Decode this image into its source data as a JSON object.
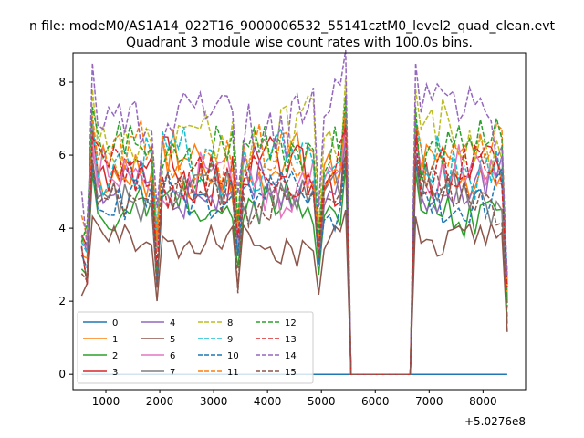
{
  "chart_data": {
    "type": "line",
    "suptitle": "n file: modeM0/AS1A14_022T16_9000006532_55141cztM0_level2_quad_clean.evt",
    "title": "Quadrant 3 module wise count rates with 100.0s bins.",
    "xlabel": "",
    "ylabel": "",
    "x_offset_label": "+5.0276e8",
    "xlim": [
      390,
      8790
    ],
    "ylim": [
      -0.42,
      8.8
    ],
    "xticks": [
      1000,
      2000,
      3000,
      4000,
      5000,
      6000,
      7000,
      8000
    ],
    "xtick_labels": [
      "1000",
      "2000",
      "3000",
      "4000",
      "5000",
      "6000",
      "7000",
      "8000"
    ],
    "yticks": [
      0,
      2,
      4,
      6,
      8
    ],
    "ytick_labels": [
      "0",
      "2",
      "4",
      "6",
      "8"
    ],
    "grid": false,
    "legend": {
      "placement": "lower-left",
      "columns": 4
    },
    "x_range": [
      550,
      8450
    ],
    "x_step": 100,
    "gap_from_x": 5550,
    "gap_to_x": 6650,
    "series": [
      {
        "name": "0",
        "color": "#1f77b4",
        "style": "solid",
        "base": 0.0,
        "flat": true
      },
      {
        "name": "1",
        "color": "#ff7f0e",
        "style": "solid",
        "base": 5.7
      },
      {
        "name": "2",
        "color": "#2ca02c",
        "style": "solid",
        "base": 4.6
      },
      {
        "name": "3",
        "color": "#d62728",
        "style": "solid",
        "base": 5.6
      },
      {
        "name": "4",
        "color": "#9467bd",
        "style": "solid",
        "base": 5.1
      },
      {
        "name": "5",
        "color": "#8c564b",
        "style": "solid",
        "base": 3.6
      },
      {
        "name": "6",
        "color": "#e377c2",
        "style": "solid",
        "base": 5.3
      },
      {
        "name": "7",
        "color": "#7f7f7f",
        "style": "solid",
        "base": 4.9
      },
      {
        "name": "8",
        "color": "#bcbd22",
        "style": "dashed",
        "base": 6.5
      },
      {
        "name": "9",
        "color": "#17becf",
        "style": "dashed",
        "base": 5.8
      },
      {
        "name": "10",
        "color": "#1f77b4",
        "style": "dashed",
        "base": 4.8
      },
      {
        "name": "11",
        "color": "#ff7f0e",
        "style": "dashed",
        "base": 5.9
      },
      {
        "name": "12",
        "color": "#2ca02c",
        "style": "dashed",
        "base": 6.1
      },
      {
        "name": "13",
        "color": "#d62728",
        "style": "dashed",
        "base": 5.4
      },
      {
        "name": "14",
        "color": "#9467bd",
        "style": "dashed",
        "base": 7.1
      },
      {
        "name": "15",
        "color": "#8c564b",
        "style": "dashed",
        "base": 4.9
      }
    ]
  }
}
